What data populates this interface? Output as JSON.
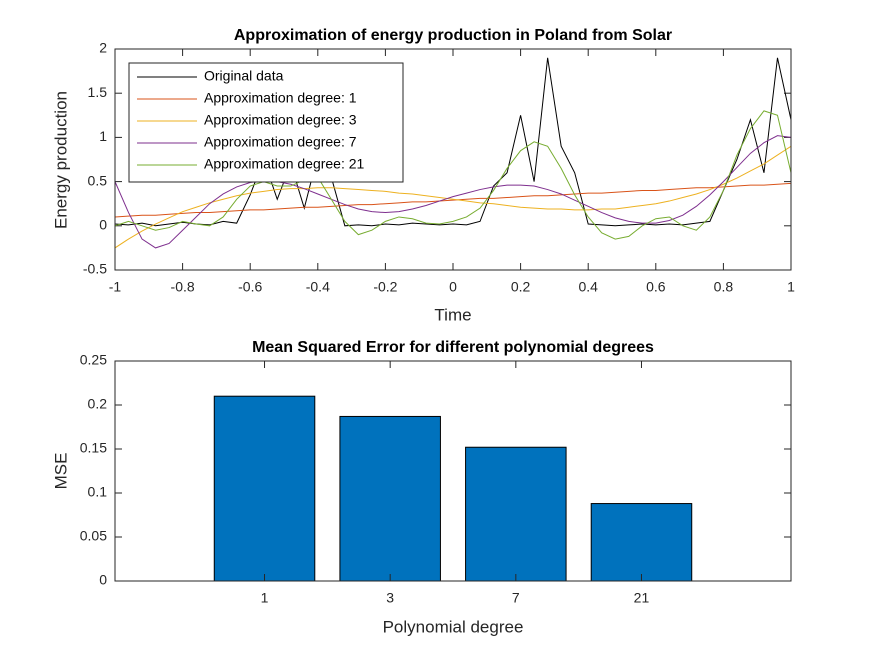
{
  "chart_data": [
    {
      "type": "line",
      "title": "Approximation of energy production in Poland from Solar",
      "xlabel": "Time",
      "ylabel": "Energy production",
      "x": [
        -1,
        -0.96,
        -0.92,
        -0.88,
        -0.84,
        -0.8,
        -0.76,
        -0.72,
        -0.68,
        -0.64,
        -0.6,
        -0.56,
        -0.52,
        -0.48,
        -0.44,
        -0.4,
        -0.36,
        -0.32,
        -0.28,
        -0.24,
        -0.2,
        -0.16,
        -0.12,
        -0.08,
        -0.04,
        0,
        0.04,
        0.08,
        0.12,
        0.16,
        0.2,
        0.24,
        0.28,
        0.32,
        0.36,
        0.4,
        0.44,
        0.48,
        0.52,
        0.56,
        0.6,
        0.64,
        0.68,
        0.72,
        0.76,
        0.8,
        0.84,
        0.88,
        0.92,
        0.96,
        1
      ],
      "series": [
        {
          "name": "Original data",
          "color": "#000000",
          "values": [
            0.02,
            0.01,
            0.03,
            0.0,
            0.02,
            0.04,
            0.02,
            0.01,
            0.05,
            0.03,
            0.35,
            0.75,
            0.3,
            0.7,
            0.2,
            0.8,
            0.55,
            0.0,
            0.01,
            0.0,
            0.02,
            0.01,
            0.03,
            0.02,
            0.01,
            0.02,
            0.01,
            0.05,
            0.45,
            0.6,
            1.25,
            0.5,
            1.9,
            0.9,
            0.6,
            0.02,
            0.01,
            0.0,
            0.01,
            0.02,
            0.01,
            0.02,
            0.01,
            0.03,
            0.05,
            0.4,
            0.75,
            1.2,
            0.6,
            1.9,
            1.2
          ]
        },
        {
          "name": "Approximation degree: 1",
          "color": "#d95319",
          "values": [
            0.1,
            0.11,
            0.12,
            0.12,
            0.13,
            0.14,
            0.15,
            0.15,
            0.16,
            0.17,
            0.18,
            0.18,
            0.19,
            0.2,
            0.21,
            0.21,
            0.22,
            0.23,
            0.24,
            0.24,
            0.25,
            0.26,
            0.27,
            0.27,
            0.28,
            0.29,
            0.3,
            0.31,
            0.31,
            0.32,
            0.33,
            0.34,
            0.34,
            0.35,
            0.36,
            0.37,
            0.37,
            0.38,
            0.39,
            0.4,
            0.4,
            0.41,
            0.42,
            0.43,
            0.43,
            0.44,
            0.45,
            0.46,
            0.46,
            0.47,
            0.48
          ]
        },
        {
          "name": "Approximation degree: 3",
          "color": "#edb120",
          "values": [
            -0.25,
            -0.15,
            -0.06,
            0.02,
            0.09,
            0.16,
            0.21,
            0.26,
            0.3,
            0.34,
            0.37,
            0.39,
            0.41,
            0.42,
            0.42,
            0.43,
            0.43,
            0.42,
            0.41,
            0.4,
            0.39,
            0.37,
            0.36,
            0.34,
            0.32,
            0.3,
            0.28,
            0.26,
            0.25,
            0.23,
            0.21,
            0.2,
            0.19,
            0.19,
            0.18,
            0.18,
            0.19,
            0.19,
            0.21,
            0.23,
            0.25,
            0.28,
            0.32,
            0.36,
            0.41,
            0.47,
            0.54,
            0.62,
            0.7,
            0.8,
            0.9
          ]
        },
        {
          "name": "Approximation degree: 7",
          "color": "#7e2f8e",
          "values": [
            0.5,
            0.15,
            -0.15,
            -0.25,
            -0.2,
            -0.05,
            0.1,
            0.25,
            0.36,
            0.44,
            0.49,
            0.51,
            0.5,
            0.47,
            0.42,
            0.36,
            0.3,
            0.24,
            0.19,
            0.16,
            0.15,
            0.16,
            0.19,
            0.23,
            0.28,
            0.33,
            0.37,
            0.41,
            0.44,
            0.46,
            0.46,
            0.45,
            0.41,
            0.36,
            0.29,
            0.22,
            0.15,
            0.09,
            0.05,
            0.03,
            0.03,
            0.06,
            0.12,
            0.22,
            0.35,
            0.5,
            0.66,
            0.82,
            0.94,
            1.02,
            1.0
          ]
        },
        {
          "name": "Approximation degree: 21",
          "color": "#77ac30",
          "values": [
            0.0,
            0.05,
            0.0,
            -0.05,
            -0.02,
            0.05,
            0.02,
            0.0,
            0.1,
            0.3,
            0.45,
            0.5,
            0.45,
            0.45,
            0.52,
            0.55,
            0.3,
            0.05,
            -0.1,
            -0.05,
            0.05,
            0.1,
            0.08,
            0.03,
            0.02,
            0.05,
            0.1,
            0.2,
            0.4,
            0.65,
            0.85,
            0.95,
            0.9,
            0.65,
            0.35,
            0.1,
            -0.08,
            -0.15,
            -0.12,
            0.0,
            0.08,
            0.1,
            0.0,
            -0.05,
            0.1,
            0.4,
            0.8,
            1.1,
            1.3,
            1.25,
            0.6
          ]
        }
      ],
      "xlim": [
        -1,
        1
      ],
      "xticks": [
        -1,
        -0.8,
        -0.6,
        -0.4,
        -0.2,
        0,
        0.2,
        0.4,
        0.6,
        0.8,
        1
      ],
      "ylim": [
        -0.5,
        2
      ],
      "yticks": [
        -0.5,
        0,
        0.5,
        1,
        1.5,
        2
      ],
      "legend": "northwest",
      "grid": false
    },
    {
      "type": "bar",
      "title": "Mean Squared Error for different polynomial degrees",
      "xlabel": "Polynomial degree",
      "ylabel": "MSE",
      "categories": [
        "1",
        "3",
        "7",
        "21"
      ],
      "values": [
        0.21,
        0.187,
        0.152,
        0.088
      ],
      "color": "#0072bd",
      "ylim": [
        0,
        0.25
      ],
      "yticks": [
        0,
        0.05,
        0.1,
        0.15,
        0.2,
        0.25
      ],
      "grid": false
    }
  ]
}
